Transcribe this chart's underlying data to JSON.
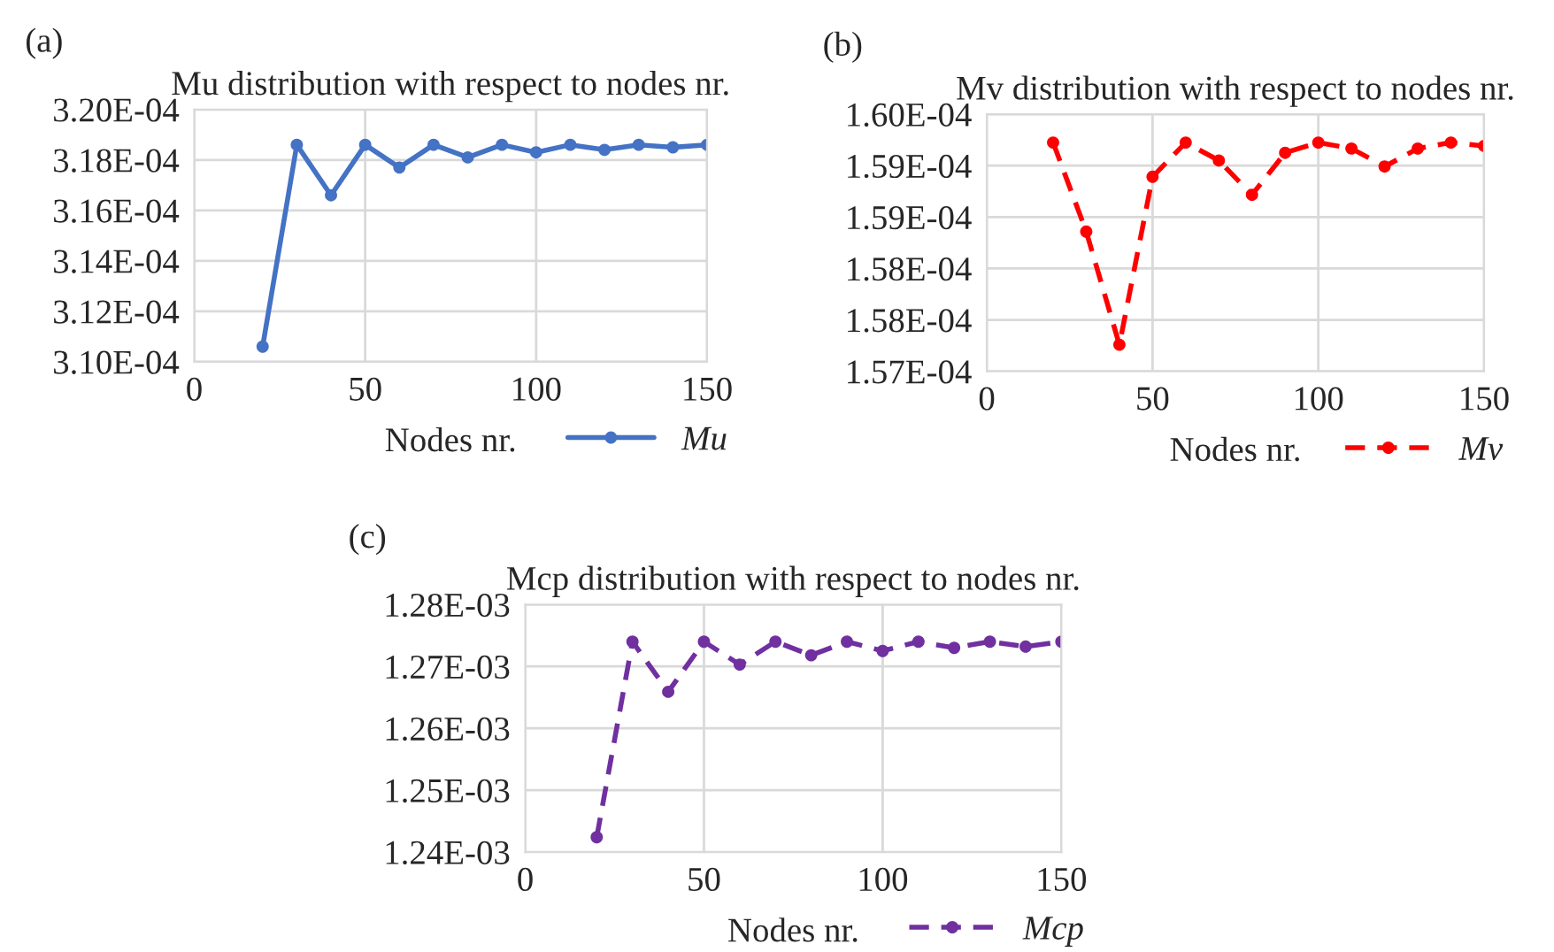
{
  "chart_data": [
    {
      "type": "line",
      "title": "Mu distribution with respect to nodes nr.",
      "xlabel": "Nodes nr.",
      "annotations": [
        "(a)"
      ],
      "x": [
        20,
        30,
        40,
        50,
        60,
        70,
        80,
        90,
        100,
        110,
        120,
        130,
        140,
        150
      ],
      "series": [
        {
          "name": "Mu",
          "color": "#4472c4",
          "values": [
            0.0003106,
            0.0003186,
            0.0003166,
            0.0003186,
            0.0003177,
            0.0003186,
            0.0003181,
            0.0003186,
            0.0003183,
            0.0003186,
            0.0003184,
            0.0003186,
            0.0003185,
            0.0003186
          ]
        }
      ],
      "xlim": [
        0,
        150
      ],
      "xticks": [
        0,
        50,
        100,
        150
      ],
      "ylim": [
        0.00031,
        0.00032
      ],
      "yticks": [
        {
          "value": 0.00031,
          "label": "3.10E-04"
        },
        {
          "value": 0.000312,
          "label": "3.12E-04"
        },
        {
          "value": 0.000314,
          "label": "3.14E-04"
        },
        {
          "value": 0.000316,
          "label": "3.16E-04"
        },
        {
          "value": 0.000318,
          "label": "3.18E-04"
        },
        {
          "value": 0.00032,
          "label": "3.20E-04"
        }
      ],
      "grid": true,
      "legend": "bottom right",
      "marker": "circle",
      "line_style": "solid"
    },
    {
      "type": "line",
      "title": "Mv distribution with respect to nodes nr.",
      "xlabel": "Nodes nr.",
      "annotations": [
        "(b)"
      ],
      "x": [
        20,
        30,
        40,
        50,
        60,
        70,
        80,
        90,
        100,
        110,
        120,
        130,
        140,
        150
      ],
      "series": [
        {
          "name": "Mv",
          "color": "#ff0000",
          "values": [
            0.00015967,
            0.00015863,
            0.00015731,
            0.00015927,
            0.00015967,
            0.00015946,
            0.00015906,
            0.00015955,
            0.00015967,
            0.0001596,
            0.00015939,
            0.0001596,
            0.00015967,
            0.00015963
          ]
        }
      ],
      "xlim": [
        0,
        150
      ],
      "xticks": [
        0,
        50,
        100,
        150
      ],
      "ylim": [
        0.000157,
        0.00016
      ],
      "yticks": [
        {
          "value": 0.000157,
          "label": "1.57E-04"
        },
        {
          "value": 0.0001576,
          "label": "1.58E-04"
        },
        {
          "value": 0.0001582,
          "label": "1.58E-04"
        },
        {
          "value": 0.0001588,
          "label": "1.59E-04"
        },
        {
          "value": 0.0001594,
          "label": "1.59E-04"
        },
        {
          "value": 0.00016,
          "label": "1.60E-04"
        }
      ],
      "grid": true,
      "legend": "bottom right",
      "marker": "circle",
      "line_style": "dashed"
    },
    {
      "type": "line",
      "title": "Mcp distribution with respect to nodes nr.",
      "xlabel": "Nodes nr.",
      "annotations": [
        "(c)"
      ],
      "x": [
        20,
        30,
        40,
        50,
        60,
        70,
        80,
        90,
        100,
        110,
        120,
        130,
        140,
        150
      ],
      "series": [
        {
          "name": "Mcp",
          "color": "#7030a0",
          "values": [
            0.0012424,
            0.001274,
            0.0012659,
            0.001274,
            0.0012703,
            0.001274,
            0.0012718,
            0.001274,
            0.0012725,
            0.001274,
            0.001273,
            0.001274,
            0.0012732,
            0.001274
          ]
        }
      ],
      "xlim": [
        0,
        150
      ],
      "xticks": [
        0,
        50,
        100,
        150
      ],
      "ylim": [
        0.00124,
        0.00128
      ],
      "yticks": [
        {
          "value": 0.00124,
          "label": "1.24E-03"
        },
        {
          "value": 0.00125,
          "label": "1.25E-03"
        },
        {
          "value": 0.00126,
          "label": "1.26E-03"
        },
        {
          "value": 0.00127,
          "label": "1.27E-03"
        },
        {
          "value": 0.00128,
          "label": "1.28E-03"
        }
      ],
      "grid": true,
      "legend": "bottom right",
      "marker": "circle",
      "line_style": "dashed"
    }
  ]
}
